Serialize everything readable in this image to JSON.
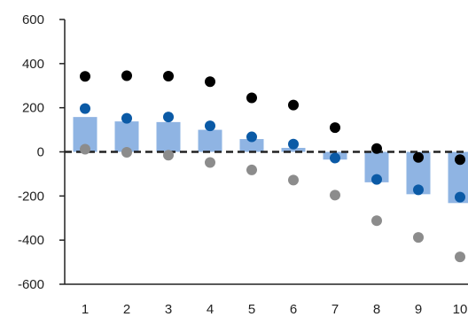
{
  "chart_data": {
    "type": "bar",
    "categories": [
      "1",
      "2",
      "3",
      "4",
      "5",
      "6",
      "7",
      "8",
      "9",
      "10"
    ],
    "ylim": [
      -600,
      600
    ],
    "yticks": [
      "600",
      "400",
      "200",
      "0",
      "-200",
      "-400",
      "-600"
    ],
    "ytick_values": [
      600,
      400,
      200,
      0,
      -200,
      -400,
      -600
    ],
    "grid": false,
    "legend": "none",
    "zero_line_style": "dashed",
    "series": [
      {
        "kind": "bar",
        "color": "#8fb4e3",
        "values": [
          158,
          138,
          135,
          100,
          58,
          18,
          -35,
          -138,
          -192,
          -232
        ]
      },
      {
        "kind": "scatter",
        "color": "#0b5aa6",
        "values": [
          196,
          152,
          158,
          118,
          68,
          35,
          -28,
          -125,
          -172,
          -205
        ]
      },
      {
        "kind": "scatter",
        "color": "#000000",
        "values": [
          342,
          345,
          343,
          318,
          245,
          212,
          110,
          15,
          -25,
          -35
        ]
      },
      {
        "kind": "scatter",
        "color": "#8c8c8c",
        "values": [
          12,
          -2,
          -15,
          -48,
          -82,
          -128,
          -196,
          -312,
          -388,
          -476
        ]
      }
    ]
  }
}
